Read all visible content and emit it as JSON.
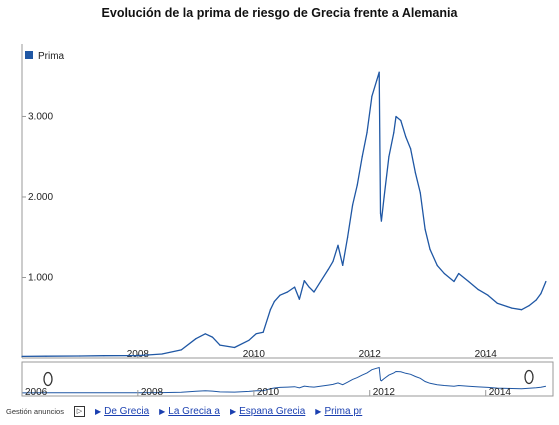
{
  "chart_data": {
    "type": "line",
    "title": "Evolución de la prima de riesgo de Grecia frente a Alemania",
    "xlabel": "",
    "ylabel": "",
    "legend": {
      "entries": [
        "Prima"
      ],
      "placement": "top-left"
    },
    "x_range": [
      "2006-01-01",
      "2015-03-01"
    ],
    "ylim": [
      0,
      3900
    ],
    "y_ticks": [
      1000,
      2000,
      3000
    ],
    "y_tick_labels": [
      "1.000",
      "2.000",
      "3.000"
    ],
    "x_ticks": [
      "2008-01-01",
      "2010-01-01",
      "2012-01-01",
      "2014-01-01"
    ],
    "x_tick_labels": [
      "2008",
      "2010",
      "2012",
      "2014"
    ],
    "series": [
      {
        "name": "Prima",
        "color": "#1f57a4",
        "points": [
          [
            "2006-01-01",
            20
          ],
          [
            "2006-06-01",
            22
          ],
          [
            "2007-01-01",
            25
          ],
          [
            "2007-06-01",
            28
          ],
          [
            "2008-01-01",
            30
          ],
          [
            "2008-06-01",
            50
          ],
          [
            "2008-10-01",
            100
          ],
          [
            "2009-01-01",
            240
          ],
          [
            "2009-03-01",
            300
          ],
          [
            "2009-04-15",
            260
          ],
          [
            "2009-06-01",
            160
          ],
          [
            "2009-09-01",
            130
          ],
          [
            "2009-12-01",
            220
          ],
          [
            "2010-01-15",
            300
          ],
          [
            "2010-03-01",
            320
          ],
          [
            "2010-04-15",
            600
          ],
          [
            "2010-05-10",
            700
          ],
          [
            "2010-06-15",
            780
          ],
          [
            "2010-08-01",
            820
          ],
          [
            "2010-09-15",
            880
          ],
          [
            "2010-10-15",
            730
          ],
          [
            "2010-11-15",
            960
          ],
          [
            "2010-12-15",
            880
          ],
          [
            "2011-01-15",
            820
          ],
          [
            "2011-03-01",
            960
          ],
          [
            "2011-04-15",
            1100
          ],
          [
            "2011-05-15",
            1200
          ],
          [
            "2011-06-15",
            1400
          ],
          [
            "2011-07-15",
            1150
          ],
          [
            "2011-08-15",
            1500
          ],
          [
            "2011-09-15",
            1900
          ],
          [
            "2011-10-15",
            2150
          ],
          [
            "2011-11-15",
            2500
          ],
          [
            "2011-12-15",
            2800
          ],
          [
            "2012-01-15",
            3250
          ],
          [
            "2012-02-15",
            3450
          ],
          [
            "2012-03-01",
            3550
          ],
          [
            "2012-03-09",
            1800
          ],
          [
            "2012-03-15",
            1700
          ],
          [
            "2012-04-01",
            2000
          ],
          [
            "2012-05-01",
            2500
          ],
          [
            "2012-06-01",
            2800
          ],
          [
            "2012-06-15",
            3000
          ],
          [
            "2012-07-15",
            2950
          ],
          [
            "2012-08-15",
            2750
          ],
          [
            "2012-09-15",
            2600
          ],
          [
            "2012-10-15",
            2300
          ],
          [
            "2012-11-15",
            2050
          ],
          [
            "2012-12-15",
            1600
          ],
          [
            "2013-01-15",
            1350
          ],
          [
            "2013-03-01",
            1150
          ],
          [
            "2013-04-15",
            1050
          ],
          [
            "2013-06-15",
            950
          ],
          [
            "2013-07-15",
            1050
          ],
          [
            "2013-09-15",
            950
          ],
          [
            "2013-11-15",
            850
          ],
          [
            "2014-01-15",
            780
          ],
          [
            "2014-03-15",
            680
          ],
          [
            "2014-05-15",
            640
          ],
          [
            "2014-06-15",
            620
          ],
          [
            "2014-08-15",
            600
          ],
          [
            "2014-10-01",
            650
          ],
          [
            "2014-11-15",
            720
          ],
          [
            "2014-12-15",
            800
          ],
          [
            "2015-01-15",
            950
          ]
        ]
      }
    ],
    "navigator": {
      "x_tick_labels": [
        "2006",
        "2008",
        "2010",
        "2012",
        "2014"
      ],
      "x_ticks": [
        "2006-01-01",
        "2008-01-01",
        "2010-01-01",
        "2012-01-01",
        "2014-01-01"
      ]
    },
    "grid": false
  },
  "ads": {
    "label": "Gestión anuncios",
    "icon": "ad-choices-icon",
    "links": [
      "De Grecia",
      "La Grecia a",
      "Espana Grecia",
      "Prima pr"
    ]
  }
}
